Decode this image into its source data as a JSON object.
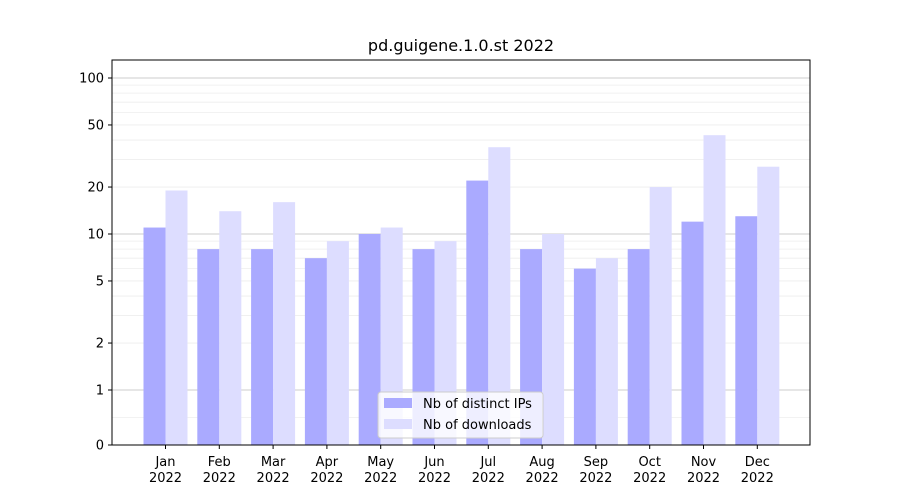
{
  "chart_data": {
    "type": "bar",
    "title": "pd.guigene.1.0.st 2022",
    "xlabel": "",
    "ylabel": "",
    "yscale": "symlog",
    "ylim": [
      0,
      120
    ],
    "yticks": [
      0,
      1,
      2,
      5,
      10,
      20,
      50,
      100
    ],
    "grid": true,
    "legend_position": "bottom-center",
    "categories": [
      [
        "Jan",
        "2022"
      ],
      [
        "Feb",
        "2022"
      ],
      [
        "Mar",
        "2022"
      ],
      [
        "Apr",
        "2022"
      ],
      [
        "May",
        "2022"
      ],
      [
        "Jun",
        "2022"
      ],
      [
        "Jul",
        "2022"
      ],
      [
        "Aug",
        "2022"
      ],
      [
        "Sep",
        "2022"
      ],
      [
        "Oct",
        "2022"
      ],
      [
        "Nov",
        "2022"
      ],
      [
        "Dec",
        "2022"
      ]
    ],
    "series": [
      {
        "name": "Nb of distinct IPs",
        "color": "#aaaaff",
        "values": [
          11,
          8,
          8,
          7,
          10,
          8,
          22,
          8,
          6,
          8,
          12,
          13
        ]
      },
      {
        "name": "Nb of downloads",
        "color": "#ddddff",
        "values": [
          19,
          14,
          16,
          9,
          11,
          9,
          36,
          10,
          7,
          20,
          43,
          27
        ]
      }
    ]
  }
}
